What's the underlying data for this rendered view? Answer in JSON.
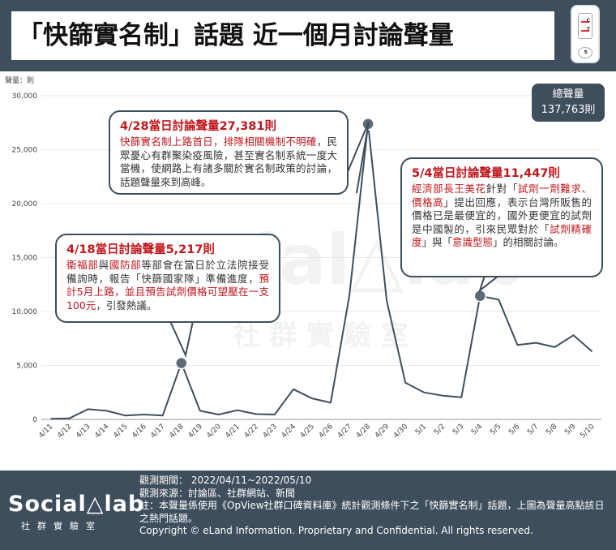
{
  "header": {
    "title": "「快篩實名制」話題 近一個月討論聲量",
    "kit_labels": {
      "c": "C",
      "t": "T",
      "s": "S"
    }
  },
  "total": {
    "label": "總聲量",
    "value": "137,763則"
  },
  "watermark": {
    "main": "Social△lab",
    "sub": "社 群 實 驗 室"
  },
  "chart_data": {
    "type": "line",
    "ylabel": "聲量：則",
    "ylim": [
      0,
      30000
    ],
    "yticks": [
      0,
      5000,
      10000,
      15000,
      20000,
      25000,
      30000
    ],
    "ytick_labels": [
      "0",
      "5,000",
      "10,000",
      "15,000",
      "20,000",
      "25,000",
      "30,000"
    ],
    "categories": [
      "4/11",
      "4/12",
      "4/13",
      "4/14",
      "4/15",
      "4/16",
      "4/17",
      "4/18",
      "4/19",
      "4/20",
      "4/21",
      "4/22",
      "4/23",
      "4/24",
      "4/25",
      "4/26",
      "4/27",
      "4/28",
      "4/29",
      "4/30",
      "5/1",
      "5/2",
      "5/3",
      "5/4",
      "5/5",
      "5/6",
      "5/7",
      "5/8",
      "5/9",
      "5/10"
    ],
    "values": [
      60,
      100,
      950,
      800,
      350,
      450,
      350,
      5217,
      800,
      450,
      850,
      500,
      450,
      2800,
      1950,
      1550,
      11500,
      27381,
      11000,
      3400,
      2500,
      2200,
      2050,
      11447,
      11100,
      6900,
      7100,
      6700,
      7800,
      6300
    ],
    "highlights": [
      7,
      17,
      23
    ],
    "line_color": "#3f4e5c",
    "marker_color": "#5d6b78",
    "grid": true
  },
  "annotations": [
    {
      "heading": "4/18當日討論聲量5,217則",
      "segments": [
        {
          "text": "衛福部",
          "red": true
        },
        {
          "text": "與",
          "red": false
        },
        {
          "text": "國防部",
          "red": true
        },
        {
          "text": "等部會在當日於立法院接受備詢時，報告「快篩國家隊」準備進度，",
          "red": false
        },
        {
          "text": "預計5月上路，並且預告試劑價格可望壓在一支100元",
          "red": true
        },
        {
          "text": "，引發熱議。",
          "red": false
        }
      ]
    },
    {
      "heading": "4/28當日討論聲量27,381則",
      "segments": [
        {
          "text": "快篩實名制上路首日，",
          "red": true
        },
        {
          "text": "排隊相關機制不明確",
          "red": true
        },
        {
          "text": "，民眾憂心有群聚染疫風險，甚至實名制系統一度大當機，使網路上有諸多關於實名制政策的討論，話題聲量來到高峰。",
          "red": false
        }
      ]
    },
    {
      "heading": "5/4當日討論聲量11,447則",
      "segments": [
        {
          "text": "經濟部長王美花",
          "red": true
        },
        {
          "text": "針對「",
          "red": false
        },
        {
          "text": "試劑一劑難求、價格高",
          "red": true
        },
        {
          "text": "」提出回應，表示台灣所販售的價格已是最便宜的，國外更便宜的試劑是中國製的，引來民眾對於「",
          "red": false
        },
        {
          "text": "試劑精確度",
          "red": true
        },
        {
          "text": "」與「",
          "red": false
        },
        {
          "text": "意識型態",
          "red": true
        },
        {
          "text": "」的相關討論。",
          "red": false
        }
      ]
    }
  ],
  "footer": {
    "logo": "Social△lab",
    "logo_sub": "社群實驗室",
    "period": "觀測期間： 2022/04/11~2022/05/10",
    "source": "觀測來源：討論區、社群網站、新聞",
    "note": "註：本聲量係使用《OpView社群口碑資料庫》統計觀測條件下之「快篩實名制」話題，上圖為聲量高點該日之熱門話題。",
    "copyright": "Copyright © eLand Information. Proprietary and Confidential. All rights reserved."
  }
}
